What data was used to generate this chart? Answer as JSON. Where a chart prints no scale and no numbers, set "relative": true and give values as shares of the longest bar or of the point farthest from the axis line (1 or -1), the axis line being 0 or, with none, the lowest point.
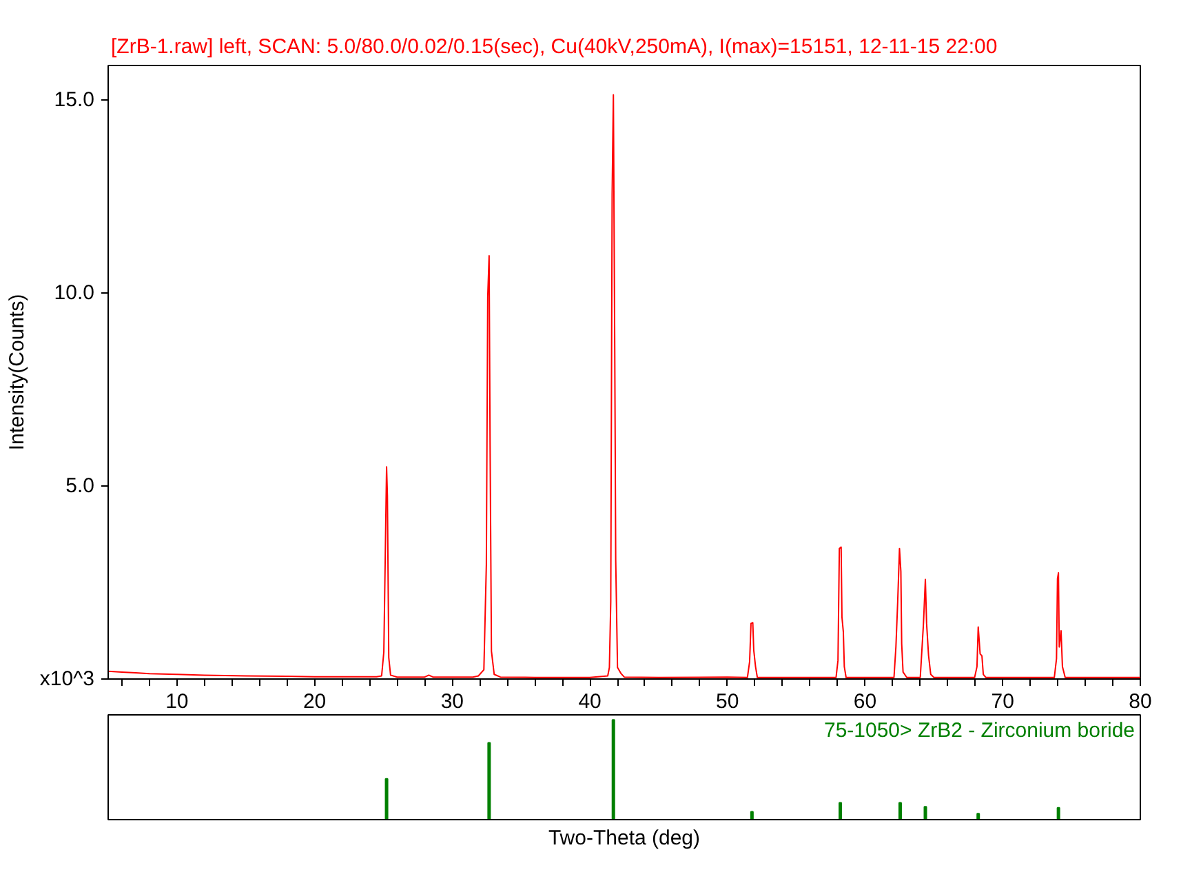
{
  "chart_data": [
    {
      "type": "line",
      "title": "[ZrB-1.raw] left, SCAN: 5.0/80.0/0.02/0.15(sec), Cu(40kV,250mA), I(max)=15151, 12-11-15 22:00",
      "ylabel": "Intensity(Counts)",
      "xlim": [
        5,
        80
      ],
      "ylim": [
        0,
        15.9
      ],
      "xticks": [
        {
          "value": 6,
          "label": null
        },
        {
          "value": 8,
          "label": null
        },
        10,
        {
          "value": 12,
          "label": null
        },
        {
          "value": 14,
          "label": null
        },
        {
          "value": 16,
          "label": null
        },
        {
          "value": 18,
          "label": null
        },
        20,
        {
          "value": 22,
          "label": null
        },
        {
          "value": 24,
          "label": null
        },
        {
          "value": 26,
          "label": null
        },
        {
          "value": 28,
          "label": null
        },
        30,
        {
          "value": 32,
          "label": null
        },
        {
          "value": 34,
          "label": null
        },
        {
          "value": 36,
          "label": null
        },
        {
          "value": 38,
          "label": null
        },
        40,
        {
          "value": 42,
          "label": null
        },
        {
          "value": 44,
          "label": null
        },
        {
          "value": 46,
          "label": null
        },
        {
          "value": 48,
          "label": null
        },
        50,
        {
          "value": 52,
          "label": null
        },
        {
          "value": 54,
          "label": null
        },
        {
          "value": 56,
          "label": null
        },
        {
          "value": 58,
          "label": null
        },
        60,
        {
          "value": 62,
          "label": null
        },
        {
          "value": 64,
          "label": null
        },
        {
          "value": 66,
          "label": null
        },
        {
          "value": 68,
          "label": null
        },
        70,
        {
          "value": 72,
          "label": null
        },
        {
          "value": 74,
          "label": null
        },
        {
          "value": 76,
          "label": null
        },
        {
          "value": 78,
          "label": null
        },
        80
      ],
      "yticks": [
        {
          "value": 0,
          "label": "x10^3"
        },
        {
          "value": 5,
          "label": "5.0"
        },
        {
          "value": 10,
          "label": "10.0"
        },
        {
          "value": 15,
          "label": "15.0"
        }
      ],
      "series": [
        {
          "color": "#ff0000",
          "x": [
            5,
            6,
            7,
            8,
            10,
            12,
            15,
            18,
            20,
            24.5,
            24.87,
            25.03,
            25.13,
            25.23,
            25.29,
            25.39,
            25.52,
            26,
            28,
            28.3,
            28.6,
            31.5,
            31.9,
            32.3,
            32.48,
            32.58,
            32.68,
            32.75,
            32.85,
            33.05,
            33.5,
            36,
            40,
            41.3,
            41.42,
            41.52,
            41.62,
            41.71,
            41.81,
            41.88,
            42.01,
            42.25,
            42.5,
            45,
            50,
            51.45,
            51.61,
            51.71,
            51.84,
            51.91,
            52.04,
            52.17,
            55,
            57.89,
            58.03,
            58.13,
            58.26,
            58.32,
            58.42,
            58.49,
            58.62,
            62.1,
            62.24,
            62.37,
            62.5,
            62.6,
            62.66,
            62.76,
            63.03,
            64.01,
            64.24,
            64.38,
            64.47,
            64.61,
            64.77,
            65,
            67.96,
            68.13,
            68.22,
            68.36,
            68.49,
            68.59,
            68.78,
            73.75,
            73.91,
            73.98,
            74.05,
            74.11,
            74.24,
            74.34,
            74.54,
            80
          ],
          "values": [
            0.2,
            0.18,
            0.16,
            0.14,
            0.12,
            0.1,
            0.08,
            0.07,
            0.06,
            0.06,
            0.08,
            0.7,
            3.09,
            5.5,
            4.75,
            0.55,
            0.1,
            0.05,
            0.05,
            0.1,
            0.05,
            0.05,
            0.08,
            0.24,
            2.97,
            9.9,
            10.97,
            6.14,
            0.72,
            0.12,
            0.05,
            0.04,
            0.04,
            0.08,
            0.3,
            2.0,
            12.57,
            15.14,
            8.55,
            3.09,
            0.3,
            0.15,
            0.05,
            0.04,
            0.05,
            0.04,
            0.45,
            1.44,
            1.46,
            0.75,
            0.32,
            0.04,
            0.04,
            0.04,
            0.48,
            3.38,
            3.42,
            1.6,
            1.22,
            0.32,
            0.04,
            0.04,
            0.83,
            2.0,
            3.38,
            2.79,
            0.91,
            0.18,
            0.04,
            0.04,
            1.42,
            2.58,
            1.44,
            0.62,
            0.12,
            0.04,
            0.04,
            0.32,
            1.35,
            0.65,
            0.6,
            0.12,
            0.04,
            0.04,
            0.53,
            2.6,
            2.75,
            0.83,
            1.25,
            0.32,
            0.04,
            0.04
          ]
        }
      ]
    },
    {
      "type": "bar",
      "relative": true,
      "xlabel": "Two-Theta (deg)",
      "xlim": [
        5,
        80
      ],
      "tick_labels": false,
      "series": [
        {
          "name": "75-1050> ZrB2 - Zirconium boride",
          "color": "#008000",
          "x": [
            25.23,
            32.68,
            41.71,
            51.78,
            58.2,
            62.55,
            64.38,
            68.22,
            74.05
          ],
          "values": [
            0.41,
            0.77,
            1,
            0.08,
            0.17,
            0.17,
            0.13,
            0.06,
            0.12
          ]
        }
      ]
    }
  ]
}
